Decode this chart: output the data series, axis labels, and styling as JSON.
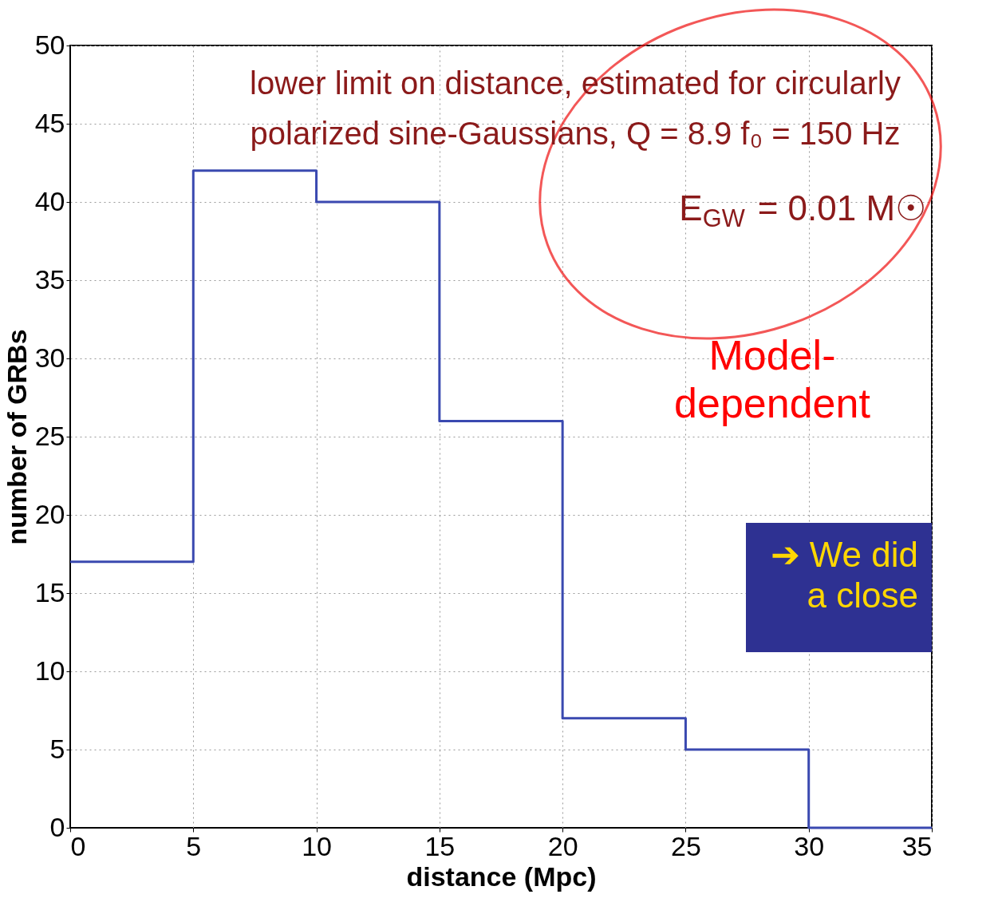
{
  "chart_data": {
    "type": "histogram",
    "xlabel": "distance (Mpc)",
    "ylabel": "number of GRBs",
    "bins": [
      0,
      5,
      10,
      15,
      20,
      25,
      30,
      35
    ],
    "values": [
      17,
      42,
      40,
      26,
      7,
      5,
      0
    ],
    "color": "#3a49b0",
    "xlim": [
      0,
      35
    ],
    "xticks": [
      0,
      5,
      10,
      15,
      20,
      25,
      30,
      35
    ],
    "ylim": [
      0,
      50
    ],
    "yticks": [
      0,
      5,
      10,
      15,
      20,
      25,
      30,
      35,
      40,
      45,
      50
    ],
    "grid": true,
    "annotations": [
      "lower limit on distance, estimated for circularly",
      "polarized sine-Gaussians, Q = 8.9   f₀ = 150 Hz",
      "E$_{GW}$ = 0.01 M☉",
      "Model-\ndependent",
      "➔ We did\na close"
    ]
  }
}
